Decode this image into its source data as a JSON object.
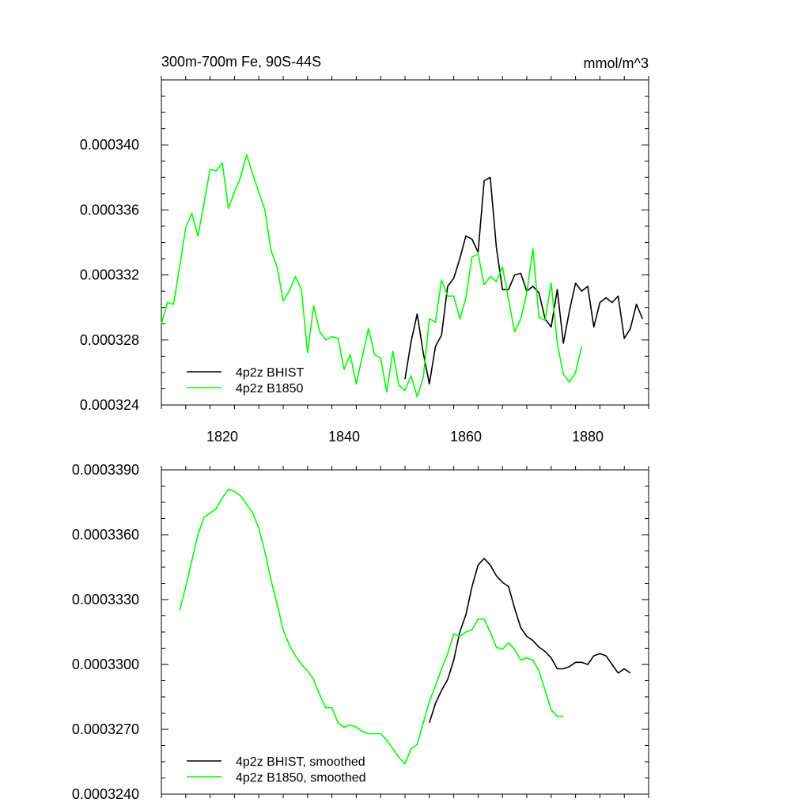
{
  "chart_data": [
    {
      "type": "line",
      "title_left": "300m-700m Fe, 90S-44S",
      "title_right": "mmol/m^3",
      "xlim": [
        1810,
        1890
      ],
      "ylim": [
        0.000324,
        0.000344
      ],
      "x_ticks": [
        1820,
        1840,
        1860,
        1880
      ],
      "x_tick_labels": [
        "1820",
        "1840",
        "1860",
        "1880"
      ],
      "y_ticks": [
        0.000324,
        0.000328,
        0.000332,
        0.000336,
        0.00034
      ],
      "y_tick_labels": [
        "0.000324",
        "0.000328",
        "0.000332",
        "0.000336",
        "0.000340"
      ],
      "legend_position": "bottom-left",
      "series": [
        {
          "name": "4p2z BHIST",
          "color": "#000000",
          "x": [
            1850,
            1851,
            1852,
            1853,
            1854,
            1855,
            1856,
            1857,
            1858,
            1859,
            1860,
            1861,
            1862,
            1863,
            1864,
            1865,
            1866,
            1867,
            1868,
            1869,
            1870,
            1871,
            1872,
            1873,
            1874,
            1875,
            1876,
            1877,
            1878,
            1879,
            1880,
            1881,
            1882,
            1883,
            1884,
            1885,
            1886,
            1887,
            1888,
            1889
          ],
          "y": [
            0.0003256,
            0.0003279,
            0.0003296,
            0.0003272,
            0.0003253,
            0.0003276,
            0.0003283,
            0.0003313,
            0.0003318,
            0.000333,
            0.0003344,
            0.0003342,
            0.0003334,
            0.0003378,
            0.000338,
            0.0003337,
            0.0003311,
            0.0003311,
            0.000332,
            0.0003321,
            0.000331,
            0.0003313,
            0.0003309,
            0.0003293,
            0.0003288,
            0.0003311,
            0.0003278,
            0.0003298,
            0.0003315,
            0.000331,
            0.0003313,
            0.0003288,
            0.0003303,
            0.0003306,
            0.0003303,
            0.0003307,
            0.0003281,
            0.0003287,
            0.0003302,
            0.0003293
          ]
        },
        {
          "name": "4p2z B1850",
          "color": "#00ff00",
          "x": [
            1810,
            1811,
            1812,
            1813,
            1814,
            1815,
            1816,
            1817,
            1818,
            1819,
            1820,
            1821,
            1822,
            1823,
            1824,
            1825,
            1826,
            1827,
            1828,
            1829,
            1830,
            1831,
            1832,
            1833,
            1834,
            1835,
            1836,
            1837,
            1838,
            1839,
            1840,
            1841,
            1842,
            1843,
            1844,
            1845,
            1846,
            1847,
            1848,
            1849,
            1850,
            1851,
            1852,
            1853,
            1854,
            1855,
            1856,
            1857,
            1858,
            1859,
            1860,
            1861,
            1862,
            1863,
            1864,
            1865,
            1866,
            1867,
            1868,
            1869,
            1870,
            1871,
            1872,
            1873,
            1874,
            1875,
            1876,
            1877,
            1878,
            1879
          ],
          "y": [
            0.000329,
            0.0003303,
            0.0003302,
            0.0003325,
            0.0003349,
            0.0003358,
            0.0003344,
            0.0003364,
            0.0003385,
            0.0003384,
            0.0003389,
            0.0003361,
            0.0003371,
            0.000338,
            0.0003394,
            0.0003382,
            0.0003371,
            0.000336,
            0.0003335,
            0.0003325,
            0.0003304,
            0.000331,
            0.0003319,
            0.0003311,
            0.0003272,
            0.0003301,
            0.0003285,
            0.000328,
            0.0003282,
            0.0003281,
            0.0003262,
            0.0003271,
            0.0003253,
            0.000327,
            0.0003287,
            0.0003271,
            0.0003269,
            0.0003248,
            0.0003273,
            0.0003252,
            0.0003249,
            0.0003258,
            0.0003245,
            0.0003257,
            0.0003293,
            0.0003291,
            0.0003317,
            0.0003307,
            0.0003307,
            0.0003293,
            0.0003306,
            0.0003331,
            0.0003333,
            0.0003314,
            0.0003319,
            0.0003316,
            0.0003325,
            0.0003305,
            0.0003285,
            0.0003293,
            0.0003309,
            0.0003336,
            0.0003294,
            0.0003292,
            0.0003315,
            0.0003278,
            0.0003259,
            0.0003254,
            0.000326,
            0.0003276
          ]
        }
      ]
    },
    {
      "type": "line",
      "xlim": [
        1810,
        1890
      ],
      "ylim": [
        0.000324,
        0.000339
      ],
      "x_ticks": [
        1820,
        1840,
        1860,
        1880
      ],
      "y_ticks": [
        0.000324,
        0.000327,
        0.00033,
        0.000333,
        0.000336,
        0.000339
      ],
      "y_tick_labels": [
        "0.0003240",
        "0.0003270",
        "0.0003300",
        "0.0003330",
        "0.0003360",
        "0.0003390"
      ],
      "legend_position": "bottom-left",
      "series": [
        {
          "name": "4p2z BHIST, smoothed",
          "color": "#000000",
          "x": [
            1854,
            1855,
            1856,
            1857,
            1858,
            1859,
            1860,
            1861,
            1862,
            1863,
            1864,
            1865,
            1866,
            1867,
            1868,
            1869,
            1870,
            1871,
            1872,
            1873,
            1874,
            1875,
            1876,
            1877,
            1878,
            1879,
            1880,
            1881,
            1882,
            1883,
            1884,
            1885,
            1886,
            1887
          ],
          "y": [
            0.0003273,
            0.0003282,
            0.0003288,
            0.0003293,
            0.0003302,
            0.0003315,
            0.0003323,
            0.0003336,
            0.0003346,
            0.0003349,
            0.0003346,
            0.0003341,
            0.0003338,
            0.0003336,
            0.0003326,
            0.0003317,
            0.0003313,
            0.0003311,
            0.0003308,
            0.0003306,
            0.0003303,
            0.0003298,
            0.0003298,
            0.0003299,
            0.0003301,
            0.0003301,
            0.00033,
            0.0003304,
            0.0003305,
            0.0003304,
            0.00033,
            0.0003296,
            0.0003298,
            0.0003296
          ]
        },
        {
          "name": "4p2z B1850, smoothed",
          "color": "#00ff00",
          "x": [
            1813,
            1814,
            1815,
            1816,
            1817,
            1818,
            1819,
            1820,
            1821,
            1822,
            1823,
            1824,
            1825,
            1826,
            1827,
            1828,
            1829,
            1830,
            1831,
            1832,
            1833,
            1834,
            1835,
            1836,
            1837,
            1838,
            1839,
            1840,
            1841,
            1842,
            1843,
            1844,
            1845,
            1846,
            1847,
            1848,
            1849,
            1850,
            1851,
            1852,
            1853,
            1854,
            1855,
            1856,
            1857,
            1858,
            1859,
            1860,
            1861,
            1862,
            1863,
            1864,
            1865,
            1866,
            1867,
            1868,
            1869,
            1870,
            1871,
            1872,
            1873,
            1874,
            1875,
            1876
          ],
          "y": [
            0.0003325,
            0.0003336,
            0.0003348,
            0.000336,
            0.0003368,
            0.000337,
            0.0003372,
            0.0003377,
            0.0003381,
            0.000338,
            0.0003378,
            0.0003374,
            0.000337,
            0.0003363,
            0.0003352,
            0.0003339,
            0.0003328,
            0.0003316,
            0.0003309,
            0.0003304,
            0.00033,
            0.0003297,
            0.0003293,
            0.0003286,
            0.000328,
            0.000328,
            0.0003273,
            0.0003271,
            0.0003272,
            0.0003271,
            0.0003269,
            0.0003268,
            0.0003268,
            0.0003268,
            0.0003265,
            0.0003261,
            0.0003257,
            0.0003254,
            0.0003261,
            0.0003263,
            0.0003273,
            0.0003283,
            0.000329,
            0.0003298,
            0.0003305,
            0.0003314,
            0.0003313,
            0.0003315,
            0.0003316,
            0.0003321,
            0.0003321,
            0.0003315,
            0.0003308,
            0.0003307,
            0.000331,
            0.0003307,
            0.0003302,
            0.0003303,
            0.0003302,
            0.0003297,
            0.0003288,
            0.0003279,
            0.0003276,
            0.0003276
          ]
        }
      ]
    }
  ]
}
